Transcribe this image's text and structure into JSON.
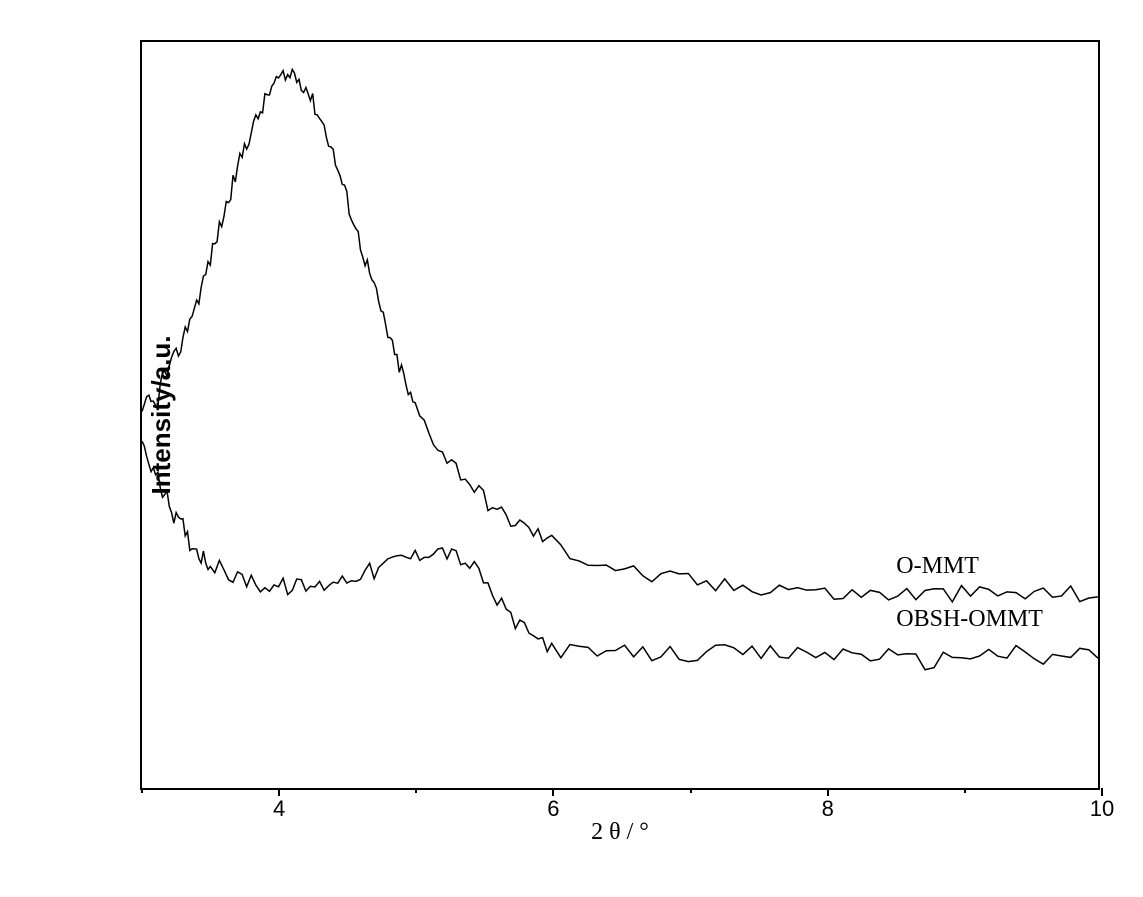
{
  "chart": {
    "type": "line",
    "ylabel": "Intensity/a.u.",
    "xlabel": "2 θ / °",
    "label_fontsize": 24,
    "xlim": [
      3,
      10
    ],
    "ylim": [
      0,
      100
    ],
    "x_ticks": [
      4,
      6,
      8,
      10
    ],
    "x_minor_ticks": [
      3,
      5,
      7,
      9
    ],
    "background_color": "#ffffff",
    "border_color": "#000000",
    "line_color": "#000000",
    "line_width": 1.5,
    "series": [
      {
        "name": "O-MMT",
        "label": "O-MMT",
        "label_x": 8.5,
        "label_y": 30,
        "data": [
          [
            3.0,
            50
          ],
          [
            3.05,
            52
          ],
          [
            3.1,
            51
          ],
          [
            3.15,
            55
          ],
          [
            3.2,
            56
          ],
          [
            3.25,
            58
          ],
          [
            3.3,
            60
          ],
          [
            3.35,
            63
          ],
          [
            3.4,
            65
          ],
          [
            3.45,
            68
          ],
          [
            3.5,
            71
          ],
          [
            3.55,
            74
          ],
          [
            3.6,
            77
          ],
          [
            3.65,
            80
          ],
          [
            3.7,
            83
          ],
          [
            3.75,
            86
          ],
          [
            3.8,
            88
          ],
          [
            3.85,
            90
          ],
          [
            3.9,
            92
          ],
          [
            3.95,
            94
          ],
          [
            4.0,
            95
          ],
          [
            4.05,
            95
          ],
          [
            4.1,
            96
          ],
          [
            4.15,
            95
          ],
          [
            4.2,
            94
          ],
          [
            4.25,
            92
          ],
          [
            4.3,
            90
          ],
          [
            4.35,
            88
          ],
          [
            4.4,
            85
          ],
          [
            4.45,
            82
          ],
          [
            4.5,
            79
          ],
          [
            4.55,
            76
          ],
          [
            4.6,
            73
          ],
          [
            4.65,
            70
          ],
          [
            4.7,
            67
          ],
          [
            4.75,
            64
          ],
          [
            4.8,
            61
          ],
          [
            4.85,
            58
          ],
          [
            4.9,
            56
          ],
          [
            4.95,
            53
          ],
          [
            5.0,
            51
          ],
          [
            5.1,
            48
          ],
          [
            5.2,
            45
          ],
          [
            5.3,
            43
          ],
          [
            5.4,
            41
          ],
          [
            5.5,
            39
          ],
          [
            5.6,
            37
          ],
          [
            5.7,
            36
          ],
          [
            5.8,
            35
          ],
          [
            5.9,
            34
          ],
          [
            6.0,
            33
          ],
          [
            6.2,
            31
          ],
          [
            6.4,
            30
          ],
          [
            6.6,
            29
          ],
          [
            6.8,
            28
          ],
          [
            7.0,
            28
          ],
          [
            7.2,
            27
          ],
          [
            7.4,
            27
          ],
          [
            7.6,
            27
          ],
          [
            7.8,
            27
          ],
          [
            8.0,
            26
          ],
          [
            8.2,
            26
          ],
          [
            8.4,
            26
          ],
          [
            8.6,
            26
          ],
          [
            8.8,
            26
          ],
          [
            9.0,
            26
          ],
          [
            9.2,
            26
          ],
          [
            9.4,
            26
          ],
          [
            9.6,
            26
          ],
          [
            9.8,
            26
          ],
          [
            10.0,
            26
          ]
        ]
      },
      {
        "name": "OBSH-OMMT",
        "label": "OBSH-OMMT",
        "label_x": 8.5,
        "label_y": 23,
        "data": [
          [
            3.0,
            46
          ],
          [
            3.05,
            44
          ],
          [
            3.1,
            42
          ],
          [
            3.15,
            40
          ],
          [
            3.2,
            38
          ],
          [
            3.25,
            36
          ],
          [
            3.3,
            35
          ],
          [
            3.35,
            33
          ],
          [
            3.4,
            32
          ],
          [
            3.45,
            31
          ],
          [
            3.5,
            30
          ],
          [
            3.6,
            29
          ],
          [
            3.7,
            28
          ],
          [
            3.8,
            28
          ],
          [
            3.9,
            27
          ],
          [
            4.0,
            27
          ],
          [
            4.1,
            27
          ],
          [
            4.2,
            27
          ],
          [
            4.3,
            27
          ],
          [
            4.4,
            28
          ],
          [
            4.5,
            28
          ],
          [
            4.6,
            29
          ],
          [
            4.7,
            29
          ],
          [
            4.8,
            30
          ],
          [
            4.9,
            31
          ],
          [
            5.0,
            31
          ],
          [
            5.1,
            32
          ],
          [
            5.2,
            32
          ],
          [
            5.3,
            31
          ],
          [
            5.4,
            30
          ],
          [
            5.5,
            28
          ],
          [
            5.6,
            25
          ],
          [
            5.7,
            23
          ],
          [
            5.8,
            21
          ],
          [
            5.9,
            20
          ],
          [
            6.0,
            19
          ],
          [
            6.2,
            18
          ],
          [
            6.4,
            18
          ],
          [
            6.6,
            18
          ],
          [
            6.8,
            18
          ],
          [
            7.0,
            18
          ],
          [
            7.2,
            18
          ],
          [
            7.4,
            18
          ],
          [
            7.6,
            18
          ],
          [
            7.8,
            18
          ],
          [
            8.0,
            18
          ],
          [
            8.2,
            18
          ],
          [
            8.4,
            18
          ],
          [
            8.6,
            17
          ],
          [
            8.8,
            17
          ],
          [
            9.0,
            18
          ],
          [
            9.2,
            18
          ],
          [
            9.4,
            18
          ],
          [
            9.6,
            17
          ],
          [
            9.8,
            18
          ],
          [
            10.0,
            18
          ]
        ]
      }
    ],
    "noise_amplitude": 1.2
  }
}
